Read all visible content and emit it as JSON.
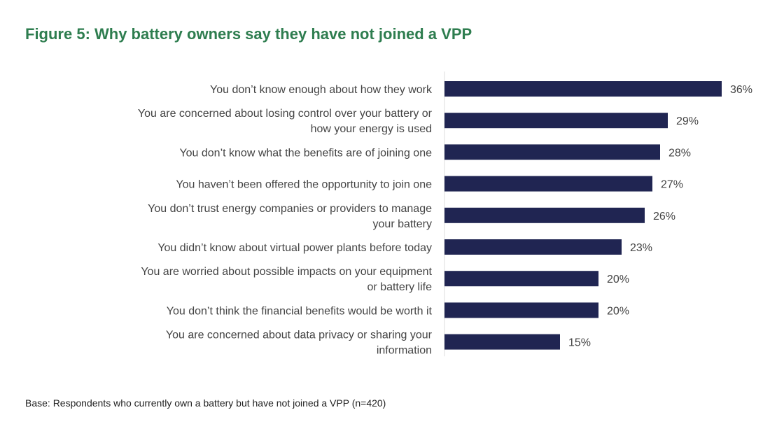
{
  "title": "Figure 5: Why battery owners say they have not joined a VPP",
  "footnote": "Base: Respondents who currently own a battery but have not joined a VPP (n=420)",
  "colors": {
    "title": "#2e7d4f",
    "bar": "#202552",
    "text": "#444444",
    "axis": "#dddddd"
  },
  "chart_data": {
    "type": "bar",
    "orientation": "horizontal",
    "value_suffix": "%",
    "xlim": [
      0,
      36
    ],
    "grid": false,
    "legend": "none",
    "categories": [
      [
        "You don’t know enough about how they work"
      ],
      [
        "You are concerned about losing control over your battery or",
        "how your energy is used"
      ],
      [
        "You don’t know what the benefits are of joining one"
      ],
      [
        "You haven’t been offered the opportunity to join one"
      ],
      [
        "You don’t trust energy companies or providers to manage",
        "your battery"
      ],
      [
        "You didn’t know about virtual power plants before today"
      ],
      [
        "You are worried about possible impacts on your equipment",
        "or battery life"
      ],
      [
        "You don’t think the financial benefits would be worth it"
      ],
      [
        "You are concerned about data privacy or sharing your",
        "information"
      ]
    ],
    "values": [
      36,
      29,
      28,
      27,
      26,
      23,
      20,
      20,
      15
    ]
  }
}
